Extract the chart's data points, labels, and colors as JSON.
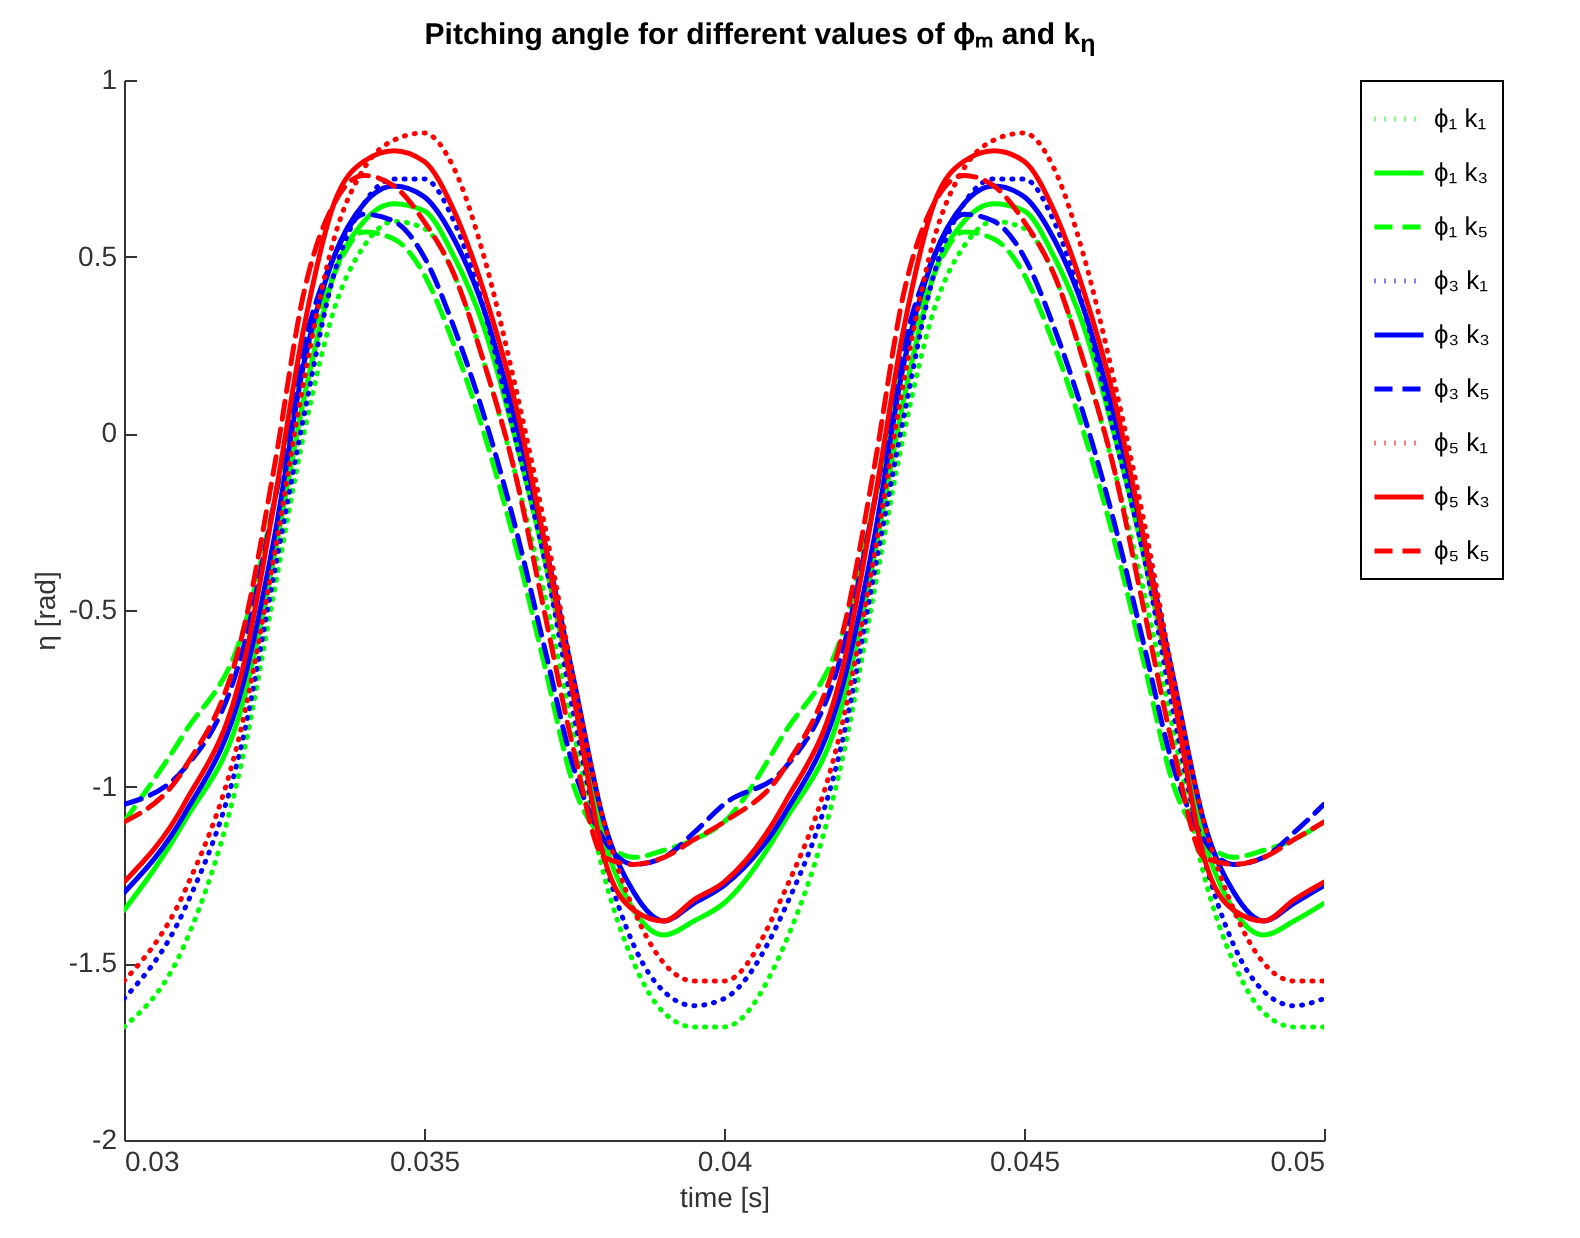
{
  "chart_data": {
    "type": "line",
    "title": "Pitching angle for different values of ϕₘ and k$_{η}$",
    "xlabel": "time [s]",
    "ylabel": "η [rad]",
    "x": [
      0.03,
      0.031,
      0.032,
      0.0325,
      0.033,
      0.0335,
      0.034,
      0.0345,
      0.035,
      0.0355,
      0.036,
      0.0365,
      0.037,
      0.0375,
      0.038,
      0.0385,
      0.039,
      0.0395,
      0.04,
      0.041,
      0.042,
      0.0425,
      0.043,
      0.0435,
      0.044,
      0.0445,
      0.045,
      0.0455,
      0.046,
      0.0465,
      0.047,
      0.0475,
      0.048,
      0.0485,
      0.049,
      0.0495,
      0.05
    ],
    "xlim": [
      0.03,
      0.05
    ],
    "xticks": [
      0.03,
      0.035,
      0.04,
      0.045,
      0.05
    ],
    "ylim": [
      -2,
      1
    ],
    "yticks": [
      -2,
      -1.5,
      -1,
      -0.5,
      0,
      0.5,
      1
    ],
    "grid": false,
    "legend": "top right",
    "series": [
      {
        "name": "ϕ₁ k₁",
        "color": "#00ff00",
        "line_style": "dotted",
        "values": [
          -1.68,
          -1.45,
          -0.9,
          -0.45,
          0.0,
          0.35,
          0.53,
          0.6,
          0.58,
          0.45,
          0.2,
          -0.1,
          -0.45,
          -0.85,
          -1.25,
          -1.5,
          -1.64,
          -1.68,
          -1.68,
          -1.45,
          -0.9,
          -0.45,
          0.0,
          0.35,
          0.53,
          0.6,
          0.58,
          0.45,
          0.2,
          -0.1,
          -0.45,
          -0.85,
          -1.25,
          -1.5,
          -1.64,
          -1.68,
          -1.68
        ]
      },
      {
        "name": "ϕ₁ k₃",
        "color": "#00ff00",
        "line_style": "solid",
        "values": [
          -1.35,
          -1.1,
          -0.75,
          -0.35,
          0.1,
          0.45,
          0.6,
          0.65,
          0.63,
          0.5,
          0.3,
          0.0,
          -0.35,
          -0.75,
          -1.15,
          -1.35,
          -1.42,
          -1.38,
          -1.33,
          -1.1,
          -0.75,
          -0.35,
          0.1,
          0.45,
          0.6,
          0.65,
          0.63,
          0.5,
          0.3,
          0.0,
          -0.35,
          -0.75,
          -1.15,
          -1.35,
          -1.42,
          -1.38,
          -1.33
        ]
      },
      {
        "name": "ϕ₁ k₅",
        "color": "#00ff00",
        "line_style": "dashed",
        "values": [
          -1.1,
          -0.85,
          -0.55,
          -0.2,
          0.2,
          0.45,
          0.57,
          0.55,
          0.45,
          0.25,
          0.0,
          -0.3,
          -0.65,
          -1.0,
          -1.15,
          -1.2,
          -1.18,
          -1.15,
          -1.1,
          -0.85,
          -0.55,
          -0.2,
          0.2,
          0.45,
          0.57,
          0.55,
          0.45,
          0.25,
          0.0,
          -0.3,
          -0.65,
          -1.0,
          -1.15,
          -1.2,
          -1.18,
          -1.15,
          -1.1
        ]
      },
      {
        "name": "ϕ₃ k₁",
        "color": "#0000ff",
        "line_style": "dotted",
        "values": [
          -1.6,
          -1.35,
          -0.85,
          -0.4,
          0.05,
          0.45,
          0.65,
          0.72,
          0.72,
          0.6,
          0.35,
          0.0,
          -0.35,
          -0.8,
          -1.2,
          -1.45,
          -1.58,
          -1.62,
          -1.6,
          -1.35,
          -0.85,
          -0.4,
          0.05,
          0.45,
          0.65,
          0.72,
          0.72,
          0.6,
          0.35,
          0.0,
          -0.35,
          -0.8,
          -1.2,
          -1.45,
          -1.58,
          -1.62,
          -1.6
        ]
      },
      {
        "name": "ϕ₃ k₃",
        "color": "#0000ff",
        "line_style": "solid",
        "values": [
          -1.3,
          -1.08,
          -0.7,
          -0.3,
          0.2,
          0.5,
          0.65,
          0.7,
          0.67,
          0.55,
          0.35,
          0.05,
          -0.3,
          -0.7,
          -1.1,
          -1.3,
          -1.38,
          -1.33,
          -1.28,
          -1.08,
          -0.7,
          -0.3,
          0.2,
          0.5,
          0.65,
          0.7,
          0.67,
          0.55,
          0.35,
          0.05,
          -0.3,
          -0.7,
          -1.1,
          -1.3,
          -1.38,
          -1.33,
          -1.28
        ]
      },
      {
        "name": "ϕ₃ k₅",
        "color": "#0000ff",
        "line_style": "dashed",
        "values": [
          -1.05,
          -0.95,
          -0.6,
          -0.2,
          0.25,
          0.5,
          0.62,
          0.6,
          0.5,
          0.3,
          0.05,
          -0.25,
          -0.6,
          -0.95,
          -1.15,
          -1.22,
          -1.2,
          -1.13,
          -1.05,
          -0.95,
          -0.6,
          -0.2,
          0.25,
          0.5,
          0.62,
          0.6,
          0.5,
          0.3,
          0.05,
          -0.25,
          -0.6,
          -0.95,
          -1.15,
          -1.22,
          -1.2,
          -1.13,
          -1.05
        ]
      },
      {
        "name": "ϕ₅ k₁",
        "color": "#ff0000",
        "line_style": "dotted",
        "values": [
          -1.55,
          -1.3,
          -0.8,
          -0.35,
          0.15,
          0.55,
          0.75,
          0.83,
          0.85,
          0.75,
          0.5,
          0.15,
          -0.25,
          -0.7,
          -1.1,
          -1.35,
          -1.5,
          -1.55,
          -1.55,
          -1.3,
          -0.8,
          -0.35,
          0.15,
          0.55,
          0.75,
          0.83,
          0.85,
          0.75,
          0.5,
          0.15,
          -0.25,
          -0.7,
          -1.1,
          -1.35,
          -1.5,
          -1.55,
          -1.55
        ]
      },
      {
        "name": "ϕ₅ k₃",
        "color": "#ff0000",
        "line_style": "solid",
        "values": [
          -1.27,
          -1.05,
          -0.65,
          -0.2,
          0.3,
          0.65,
          0.77,
          0.8,
          0.77,
          0.63,
          0.4,
          0.1,
          -0.3,
          -0.75,
          -1.2,
          -1.35,
          -1.38,
          -1.32,
          -1.27,
          -1.05,
          -0.65,
          -0.2,
          0.3,
          0.65,
          0.77,
          0.8,
          0.77,
          0.63,
          0.4,
          0.1,
          -0.3,
          -0.75,
          -1.2,
          -1.35,
          -1.38,
          -1.32,
          -1.27
        ]
      },
      {
        "name": "ϕ₅ k₅",
        "color": "#ff0000",
        "line_style": "dashed",
        "values": [
          -1.1,
          -0.95,
          -0.55,
          -0.1,
          0.4,
          0.65,
          0.73,
          0.7,
          0.6,
          0.45,
          0.2,
          -0.1,
          -0.5,
          -0.9,
          -1.2,
          -1.22,
          -1.2,
          -1.15,
          -1.1,
          -0.95,
          -0.55,
          -0.1,
          0.4,
          0.65,
          0.73,
          0.7,
          0.6,
          0.45,
          0.2,
          -0.1,
          -0.5,
          -0.9,
          -1.2,
          -1.22,
          -1.2,
          -1.15,
          -1.1
        ]
      }
    ]
  }
}
